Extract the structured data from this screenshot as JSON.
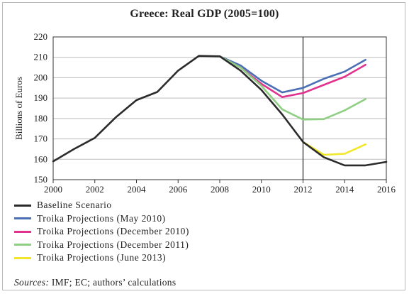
{
  "chart_data": {
    "type": "line",
    "title": "Greece: Real GDP (2005=100)",
    "xlabel": "",
    "ylabel": "Billions of Euros",
    "xlim": [
      2000,
      2016
    ],
    "ylim": [
      150,
      220
    ],
    "xticks": [
      2000,
      2002,
      2004,
      2006,
      2008,
      2010,
      2012,
      2014,
      2016
    ],
    "yticks": [
      150,
      160,
      170,
      180,
      190,
      200,
      210,
      220
    ],
    "grid": "horizontal",
    "reference_line_x": 2012,
    "legend_position": "bottom",
    "series": [
      {
        "name": "Baseline Scenario",
        "color": "#2b2b2b",
        "x": [
          2000,
          2001,
          2002,
          2003,
          2004,
          2005,
          2006,
          2007,
          2008,
          2009,
          2010,
          2011,
          2012,
          2013,
          2014,
          2015,
          2016
        ],
        "values": [
          159,
          165,
          170.5,
          180.5,
          189,
          193,
          203.5,
          210.7,
          210.5,
          203.5,
          194,
          182,
          168.5,
          161,
          157,
          157,
          158.7
        ]
      },
      {
        "name": "Troika Projections (May 2010)",
        "color": "#4a6fb5",
        "x": [
          2008,
          2009,
          2010,
          2011,
          2012,
          2013,
          2014,
          2015
        ],
        "values": [
          210.5,
          206,
          198.5,
          192.8,
          195,
          199.5,
          203,
          208.8
        ]
      },
      {
        "name": "Troika Projections (December 2010)",
        "color": "#e0338f",
        "x": [
          2008,
          2009,
          2010,
          2011,
          2012,
          2013,
          2014,
          2015
        ],
        "values": [
          210.5,
          205,
          197,
          190.5,
          192.5,
          196.5,
          200.5,
          206.3
        ]
      },
      {
        "name": "Troika Projections (December 2011)",
        "color": "#8fcf84",
        "x": [
          2008,
          2009,
          2010,
          2011,
          2012,
          2013,
          2014,
          2015
        ],
        "values": [
          210.5,
          205,
          196,
          184.5,
          179.5,
          179.7,
          184,
          189.5
        ]
      },
      {
        "name": "Troika Projections (June 2013)",
        "color": "#f2e62a",
        "x": [
          2012,
          2013,
          2014,
          2015
        ],
        "values": [
          168.5,
          162.2,
          162.7,
          167.3
        ]
      }
    ]
  },
  "source": {
    "label": "Sources:",
    "text": " IMF; EC; authors’ calculations"
  }
}
